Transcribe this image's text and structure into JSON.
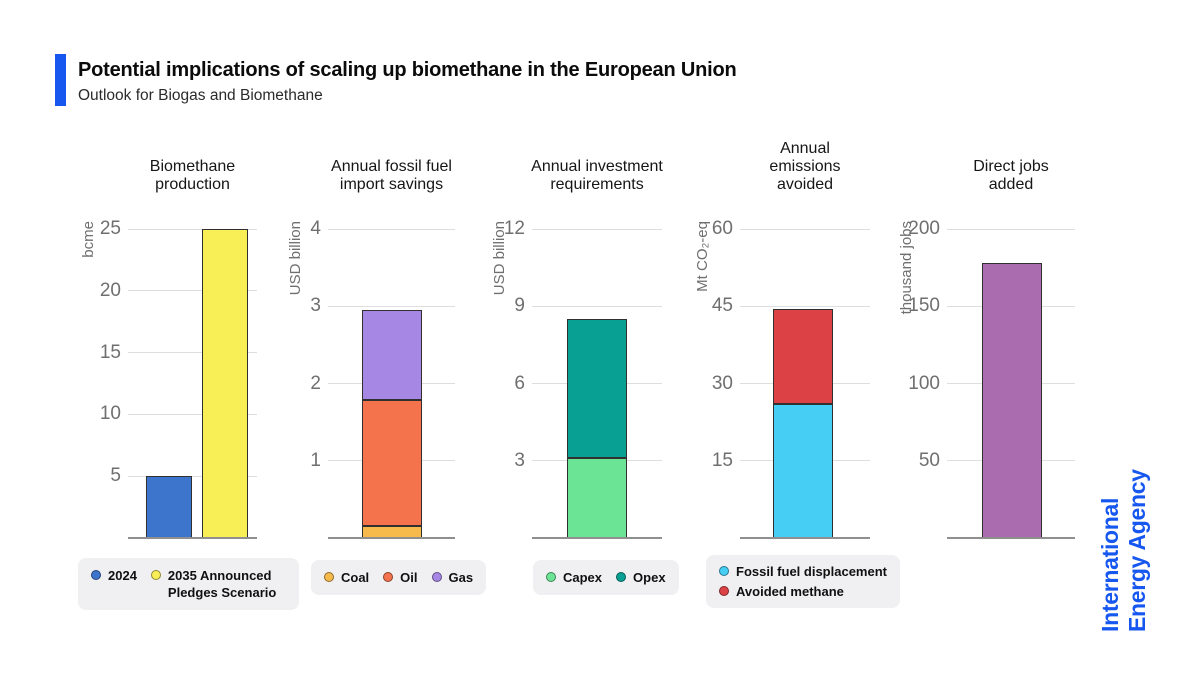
{
  "header": {
    "title": "Potential implications of scaling up biomethane in the European Union",
    "subtitle": "Outlook for Biogas and Biomethane",
    "accent_color": "#1657f0"
  },
  "branding": {
    "logo_line1": "International",
    "logo_line2": "Energy Agency",
    "logo_color": "#1657f0"
  },
  "chart_data": [
    {
      "id": "biomethane-production",
      "type": "bar",
      "title": "Biomethane production",
      "title_lines": [
        "Biomethane",
        "production"
      ],
      "ylabel": "bcme",
      "ylim": [
        0,
        25
      ],
      "yticks": [
        5,
        10,
        15,
        20,
        25
      ],
      "grid": true,
      "bars": [
        {
          "label": "2024",
          "segments": [
            {
              "name": "2024",
              "value": 5,
              "color": "#3d74cc"
            }
          ]
        },
        {
          "label": "2035 Announced Pledges Scenario",
          "segments": [
            {
              "name": "2035 Announced Pledges Scenario",
              "value": 25,
              "color": "#f8ee55"
            }
          ]
        }
      ],
      "legend": {
        "position": "bottom",
        "items": [
          {
            "label": "2024",
            "color": "#3d74cc"
          },
          {
            "label": "2035 Announced Pledges Scenario",
            "color": "#f8ee55",
            "wrap": true
          }
        ]
      }
    },
    {
      "id": "fossil-fuel-import-savings",
      "type": "stacked-bar",
      "title": "Annual fossil fuel import savings",
      "title_lines": [
        "Annual fossil fuel",
        "import savings"
      ],
      "ylabel": "USD billion",
      "ylim": [
        0,
        4
      ],
      "yticks": [
        1,
        2,
        3,
        4
      ],
      "grid": true,
      "bars": [
        {
          "label": "Fossil fuel import savings",
          "segments": [
            {
              "name": "Coal",
              "value": 0.15,
              "color": "#f6b94c"
            },
            {
              "name": "Oil",
              "value": 1.63,
              "color": "#f4724c"
            },
            {
              "name": "Gas",
              "value": 1.17,
              "color": "#a687e4"
            }
          ]
        }
      ],
      "legend": {
        "position": "bottom",
        "items": [
          {
            "label": "Coal",
            "color": "#f6b94c"
          },
          {
            "label": "Oil",
            "color": "#f4724c"
          },
          {
            "label": "Gas",
            "color": "#a687e4"
          }
        ]
      }
    },
    {
      "id": "investment-requirements",
      "type": "stacked-bar",
      "title": "Annual investment requirements",
      "title_lines": [
        "Annual investment",
        "requirements"
      ],
      "ylabel": "USD billion",
      "ylim": [
        0,
        12
      ],
      "yticks": [
        3,
        6,
        9,
        12
      ],
      "grid": true,
      "bars": [
        {
          "label": "Investment requirements",
          "segments": [
            {
              "name": "Capex",
              "value": 3.1,
              "color": "#6ce495"
            },
            {
              "name": "Opex",
              "value": 5.4,
              "color": "#09a094"
            }
          ]
        }
      ],
      "legend": {
        "position": "bottom",
        "items": [
          {
            "label": "Capex",
            "color": "#6ce495"
          },
          {
            "label": "Opex",
            "color": "#09a094"
          }
        ]
      }
    },
    {
      "id": "emissions-avoided",
      "type": "stacked-bar",
      "title": "Annual emissions avoided",
      "title_lines": [
        "Annual",
        "emissions",
        "avoided"
      ],
      "ylabel": "Mt CO₂-eq",
      "ylim": [
        0,
        60
      ],
      "yticks": [
        15,
        30,
        45,
        60
      ],
      "grid": true,
      "bars": [
        {
          "label": "Emissions avoided",
          "segments": [
            {
              "name": "Fossil fuel displacement",
              "value": 26,
              "color": "#47cef4"
            },
            {
              "name": "Avoided methane",
              "value": 18.5,
              "color": "#dc4245"
            }
          ]
        }
      ],
      "legend": {
        "position": "bottom",
        "items": [
          {
            "label": "Fossil fuel displacement",
            "color": "#47cef4"
          },
          {
            "label": "Avoided methane",
            "color": "#dc4245"
          }
        ]
      }
    },
    {
      "id": "direct-jobs",
      "type": "bar",
      "title": "Direct jobs added",
      "title_lines": [
        "Direct jobs",
        "added"
      ],
      "ylabel": "thousand jobs",
      "ylim": [
        0,
        200
      ],
      "yticks": [
        50,
        100,
        150,
        200
      ],
      "grid": true,
      "bars": [
        {
          "label": "Direct jobs added",
          "segments": [
            {
              "name": "Direct jobs added",
              "value": 178,
              "color": "#aa6cae"
            }
          ]
        }
      ],
      "legend": null
    }
  ]
}
